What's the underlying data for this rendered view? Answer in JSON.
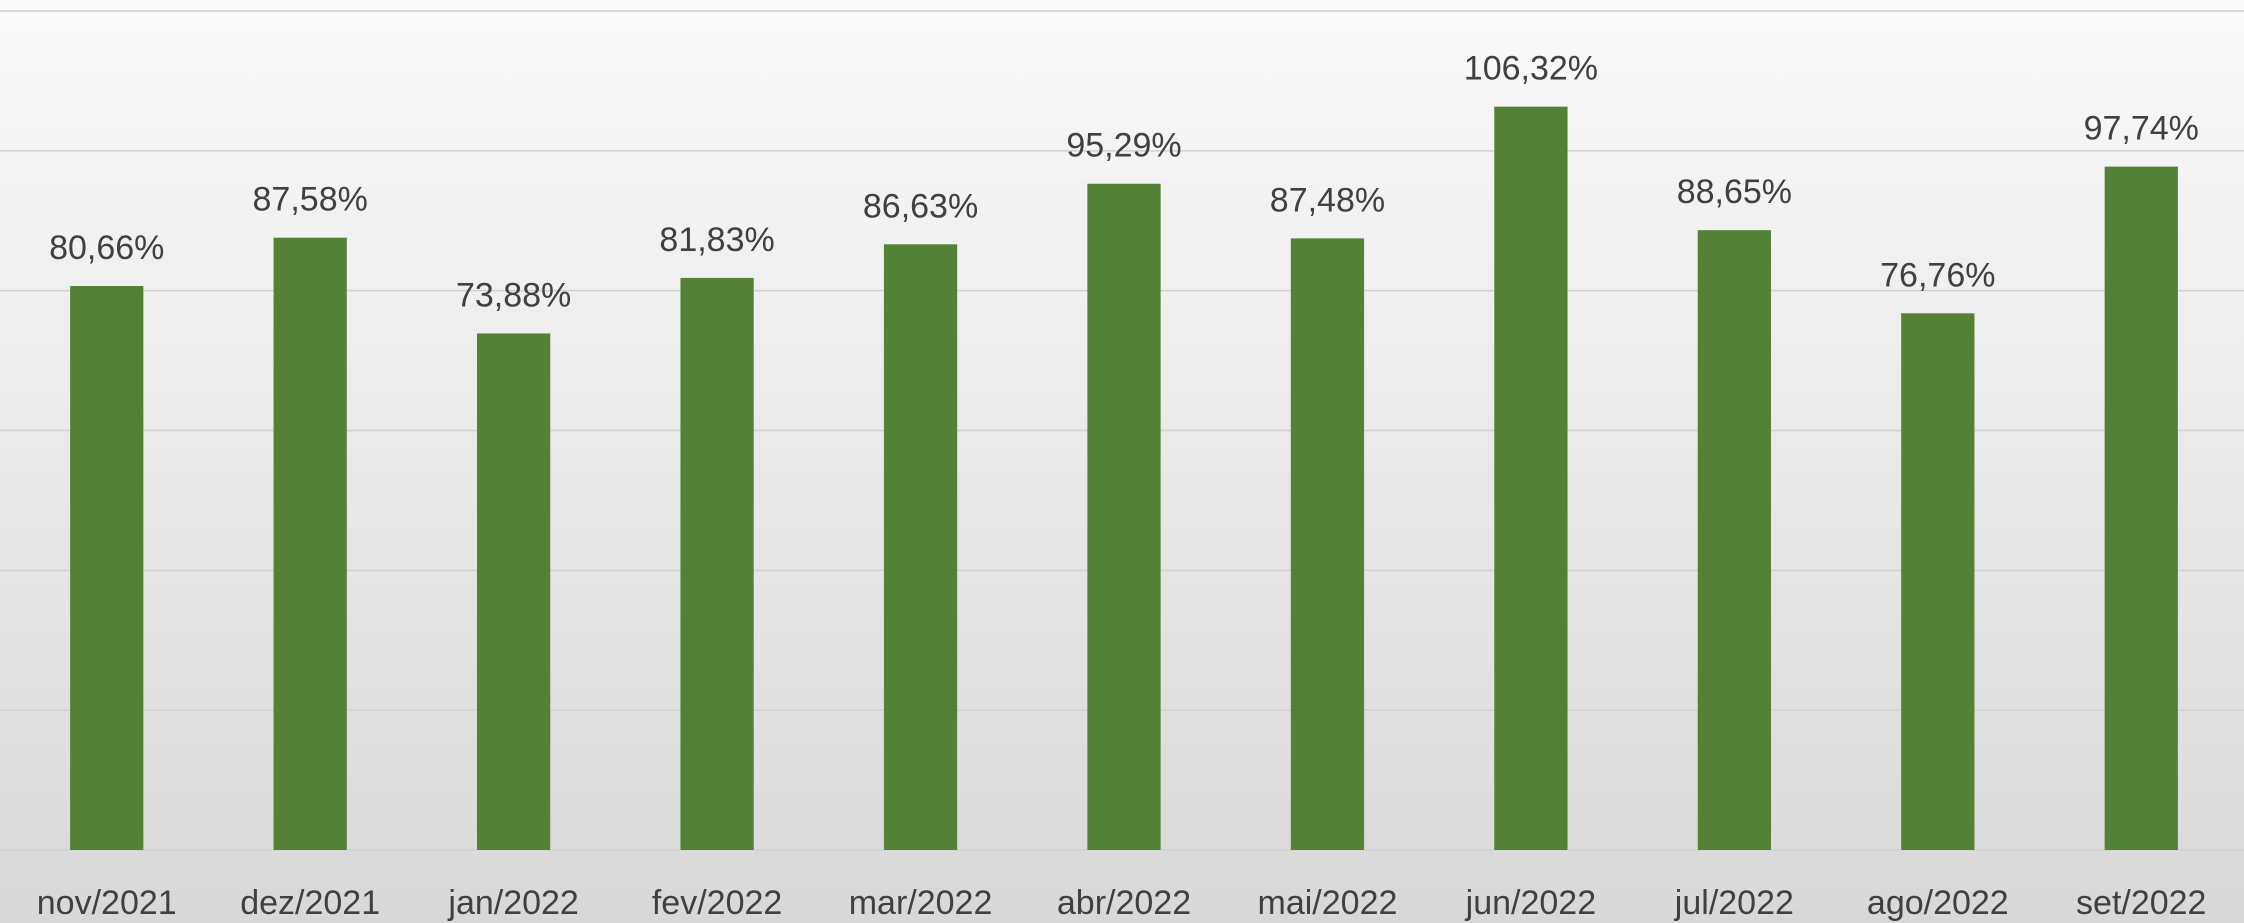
{
  "chart_data": {
    "type": "bar",
    "categories": [
      "nov/2021",
      "dez/2021",
      "jan/2022",
      "fev/2022",
      "mar/2022",
      "abr/2022",
      "mai/2022",
      "jun/2022",
      "jul/2022",
      "ago/2022",
      "set/2022"
    ],
    "values": [
      80.66,
      87.58,
      73.88,
      81.83,
      86.63,
      95.29,
      87.48,
      106.32,
      88.65,
      76.76,
      97.74
    ],
    "value_labels": [
      "80,66%",
      "87,58%",
      "73,88%",
      "81,83%",
      "86,63%",
      "95,29%",
      "87,48%",
      "106,32%",
      "88,65%",
      "76,76%",
      "97,74%"
    ],
    "color": "#538135",
    "ylim": [
      0,
      120
    ],
    "yticks": [
      0,
      20,
      40,
      60,
      80,
      100,
      120
    ],
    "grid": true
  }
}
